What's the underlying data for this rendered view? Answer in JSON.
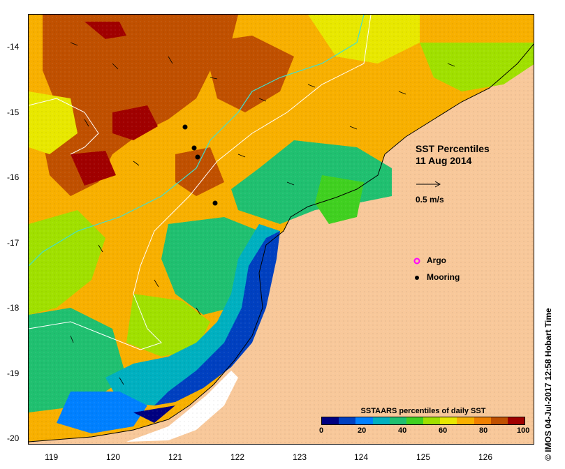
{
  "title": {
    "line1": "SST Percentiles",
    "line2": "11 Aug 2014"
  },
  "vector_scale_label": "0.5 m/s",
  "legend": {
    "argo_label": "Argo",
    "mooring_label": "Mooring",
    "argo_color": "#ff00ff",
    "mooring_color": "#000000"
  },
  "colorbar": {
    "title": "SSTAARS percentiles of daily SST",
    "tick_labels": [
      "0",
      "20",
      "40",
      "60",
      "80",
      "100"
    ],
    "colors": [
      "#000080",
      "#0040c0",
      "#0080ff",
      "#00b0c0",
      "#20c070",
      "#40d020",
      "#a0e000",
      "#e8e800",
      "#f8b000",
      "#f08000",
      "#c05000",
      "#a00000"
    ]
  },
  "axes": {
    "lon_labels": [
      "119",
      "120",
      "121",
      "122",
      "123",
      "124",
      "125",
      "126"
    ],
    "lat_labels": [
      "-14",
      "-15",
      "-16",
      "-17",
      "-18",
      "-19",
      "-20"
    ]
  },
  "credit": "© IMOS 04-Jul-2017 12:58 Hobart Time",
  "colors": {
    "land": "#f8c89a",
    "coast_white": "#ffffff",
    "contour_cyan": "#40e0d0"
  }
}
